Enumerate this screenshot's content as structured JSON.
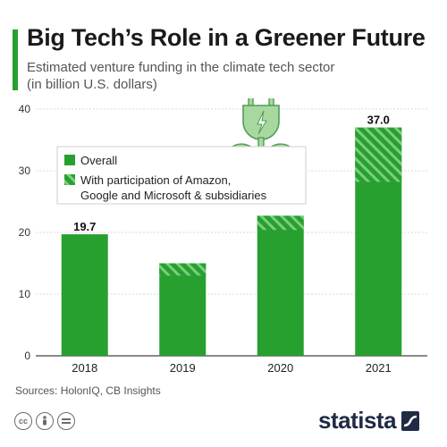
{
  "header": {
    "title": "Big Tech’s Role in a Greener Future",
    "subtitle_line1": "Estimated venture funding in the climate tech sector",
    "subtitle_line2": "(in billion U.S. dollars)"
  },
  "footer": {
    "source": "Sources: HolonIQ, CB Insights",
    "brand": "statista"
  },
  "colors": {
    "accent": "#27a02f",
    "bar": "#27a02f",
    "hatch": "#7ccd80"
  },
  "icons": [
    "plug-plant-icon",
    "cc-icon",
    "by-icon",
    "nd-icon",
    "statista-logo-icon"
  ],
  "chart_data": {
    "type": "bar",
    "categories": [
      "2018",
      "2019",
      "2020",
      "2021"
    ],
    "series": [
      {
        "name": "Overall",
        "values": [
          19.7,
          15.0,
          22.7,
          37.0
        ]
      },
      {
        "name": "With participation of Amazon, Google and Microsoft & subsidiaries",
        "values": [
          0,
          2.0,
          2.3,
          8.8
        ]
      }
    ],
    "data_labels": {
      "2018": "19.7",
      "2021": "37.0"
    },
    "yticks": [
      0,
      10,
      20,
      30,
      40
    ],
    "ylim": [
      0,
      40
    ],
    "grid": true,
    "legend": {
      "position": "top-center",
      "overall": "Overall",
      "partner_line1": "With participation of Amazon,",
      "partner_line2": "Google and Microsoft & subsidiaries"
    }
  }
}
